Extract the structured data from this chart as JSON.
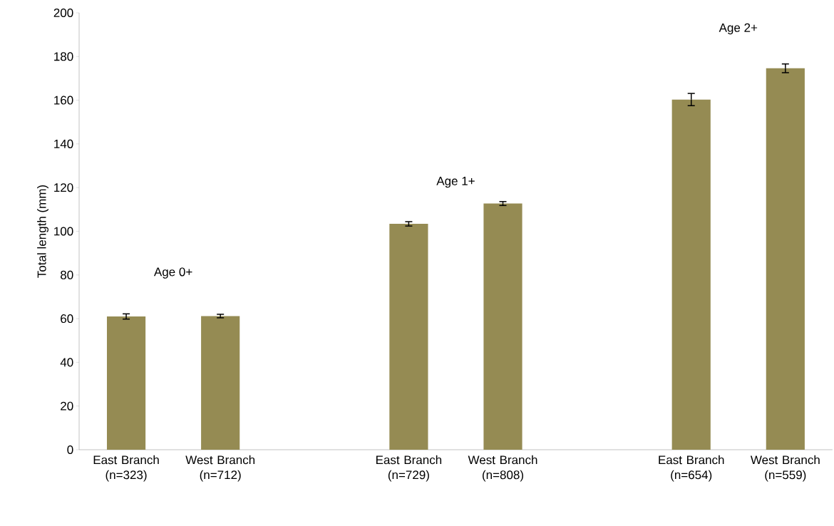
{
  "chart_data": {
    "type": "bar",
    "ylabel": "Total length (mm)",
    "categories": [
      "East Branch (n=323)",
      "West Branch (n=712)",
      null,
      "East Branch (n=729)",
      "West Branch (n=808)",
      null,
      "East Branch (n=654)",
      "West Branch (n=559)"
    ],
    "values": [
      61.0,
      61.2,
      null,
      103.4,
      112.7,
      null,
      160.3,
      174.6
    ],
    "errors": [
      1.2,
      0.8,
      null,
      1.0,
      0.9,
      null,
      2.8,
      2.0
    ],
    "color": "#958b53",
    "ylim": [
      0,
      200
    ],
    "yticks": [
      0,
      20,
      40,
      60,
      80,
      100,
      120,
      140,
      160,
      180,
      200
    ],
    "annotations": [
      "Age 0+",
      "Age 1+",
      "Age 2+"
    ],
    "grid": false
  }
}
